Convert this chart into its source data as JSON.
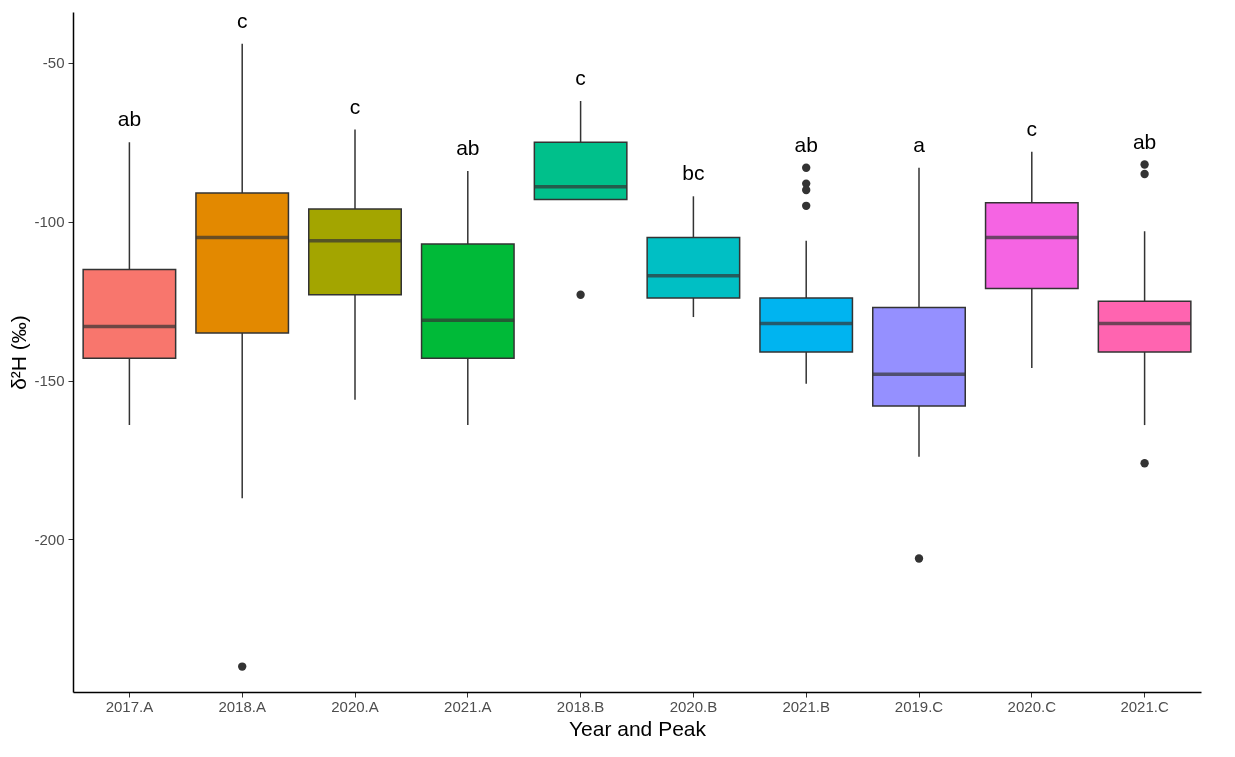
{
  "chart_data": {
    "type": "box",
    "xlabel": "Year and Peak",
    "ylabel": "δ²H (‰)",
    "categories": [
      "2017.A",
      "2018.A",
      "2020.A",
      "2021.A",
      "2018.B",
      "2020.B",
      "2021.B",
      "2019.C",
      "2020.C",
      "2021.C"
    ],
    "colors": [
      "#f8766d",
      "#e38900",
      "#a3a500",
      "#00ba38",
      "#00c08b",
      "#00bfc4",
      "#00b4f0",
      "#9590ff",
      "#f564e3",
      "#ff64b0"
    ],
    "boxes": [
      {
        "low": -164,
        "q1": -143,
        "median": -133,
        "q3": -115,
        "high": -75
      },
      {
        "low": -187,
        "q1": -135,
        "median": -105,
        "q3": -91,
        "high": -44,
        "outliers": [
          -240
        ]
      },
      {
        "low": -156,
        "q1": -123,
        "median": -106,
        "q3": -96,
        "high": -71
      },
      {
        "low": -164,
        "q1": -143,
        "median": -131,
        "q3": -107,
        "high": -84
      },
      {
        "low": -93,
        "q1": -93,
        "median": -89,
        "q3": -75,
        "high": -62,
        "outliers": [
          -123
        ]
      },
      {
        "low": -130,
        "q1": -124,
        "median": -117,
        "q3": -105,
        "high": -92
      },
      {
        "low": -151,
        "q1": -141,
        "median": -132,
        "q3": -124,
        "high": -106,
        "outliers": [
          -83,
          -88,
          -90,
          -95
        ]
      },
      {
        "low": -174,
        "q1": -158,
        "median": -148,
        "q3": -127,
        "high": -83,
        "outliers": [
          -206
        ]
      },
      {
        "low": -146,
        "q1": -121,
        "median": -105,
        "q3": -94,
        "high": -78
      },
      {
        "low": -164,
        "q1": -141,
        "median": -132,
        "q3": -125,
        "high": -103,
        "outliers": [
          -82,
          -85,
          -176
        ]
      }
    ],
    "ylim": [
      -248,
      -34
    ],
    "yticks": [
      -200,
      -150,
      -100,
      -50
    ],
    "annotations": [
      "ab",
      "c",
      "c",
      "ab",
      "c",
      "bc",
      "ab",
      "a",
      "c",
      "ab"
    ]
  }
}
